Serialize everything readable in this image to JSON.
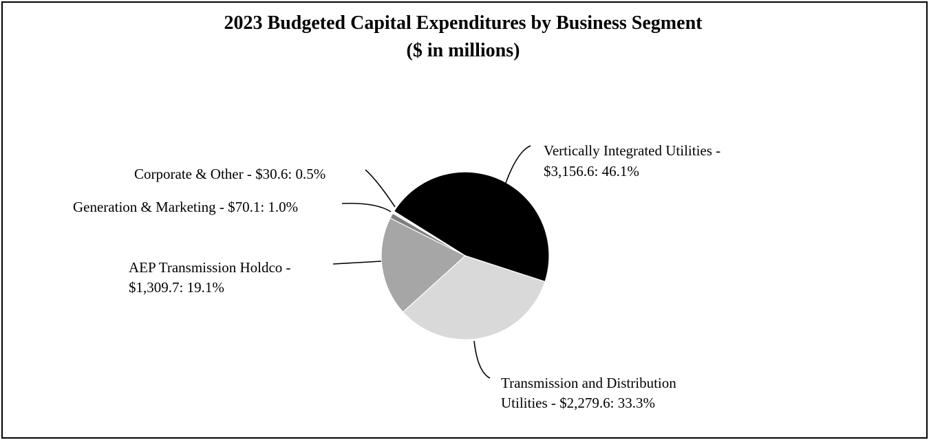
{
  "chart_data": {
    "type": "pie",
    "title": "2023 Budgeted Capital Expenditures by Business Segment",
    "subtitle": "($ in millions)",
    "slices": [
      {
        "name": "Vertically Integrated Utilities",
        "value": 3156.6,
        "percent": 46.1,
        "label_lines": [
          "Vertically Integrated Utilities -",
          "$3,156.6: 46.1%"
        ],
        "color": "#000000"
      },
      {
        "name": "Transmission and Distribution Utilities",
        "value": 2279.6,
        "percent": 33.3,
        "label_lines": [
          "Transmission and Distribution",
          "Utilities - $2,279.6: 33.3%"
        ],
        "color": "#d9d9d9"
      },
      {
        "name": "AEP Transmission Holdco",
        "value": 1309.7,
        "percent": 19.1,
        "label_lines": [
          "AEP Transmission Holdco -",
          "$1,309.7: 19.1%"
        ],
        "color": "#a6a6a6"
      },
      {
        "name": "Generation & Marketing",
        "value": 70.1,
        "percent": 1.0,
        "label_lines": [
          "Generation & Marketing - $70.1: 1.0%"
        ],
        "color": "#7f7f7f"
      },
      {
        "name": "Corporate & Other",
        "value": 30.6,
        "percent": 0.5,
        "label_lines": [
          "Corporate & Other - $30.6: 0.5%"
        ],
        "color": "#f2f2f2"
      }
    ]
  }
}
